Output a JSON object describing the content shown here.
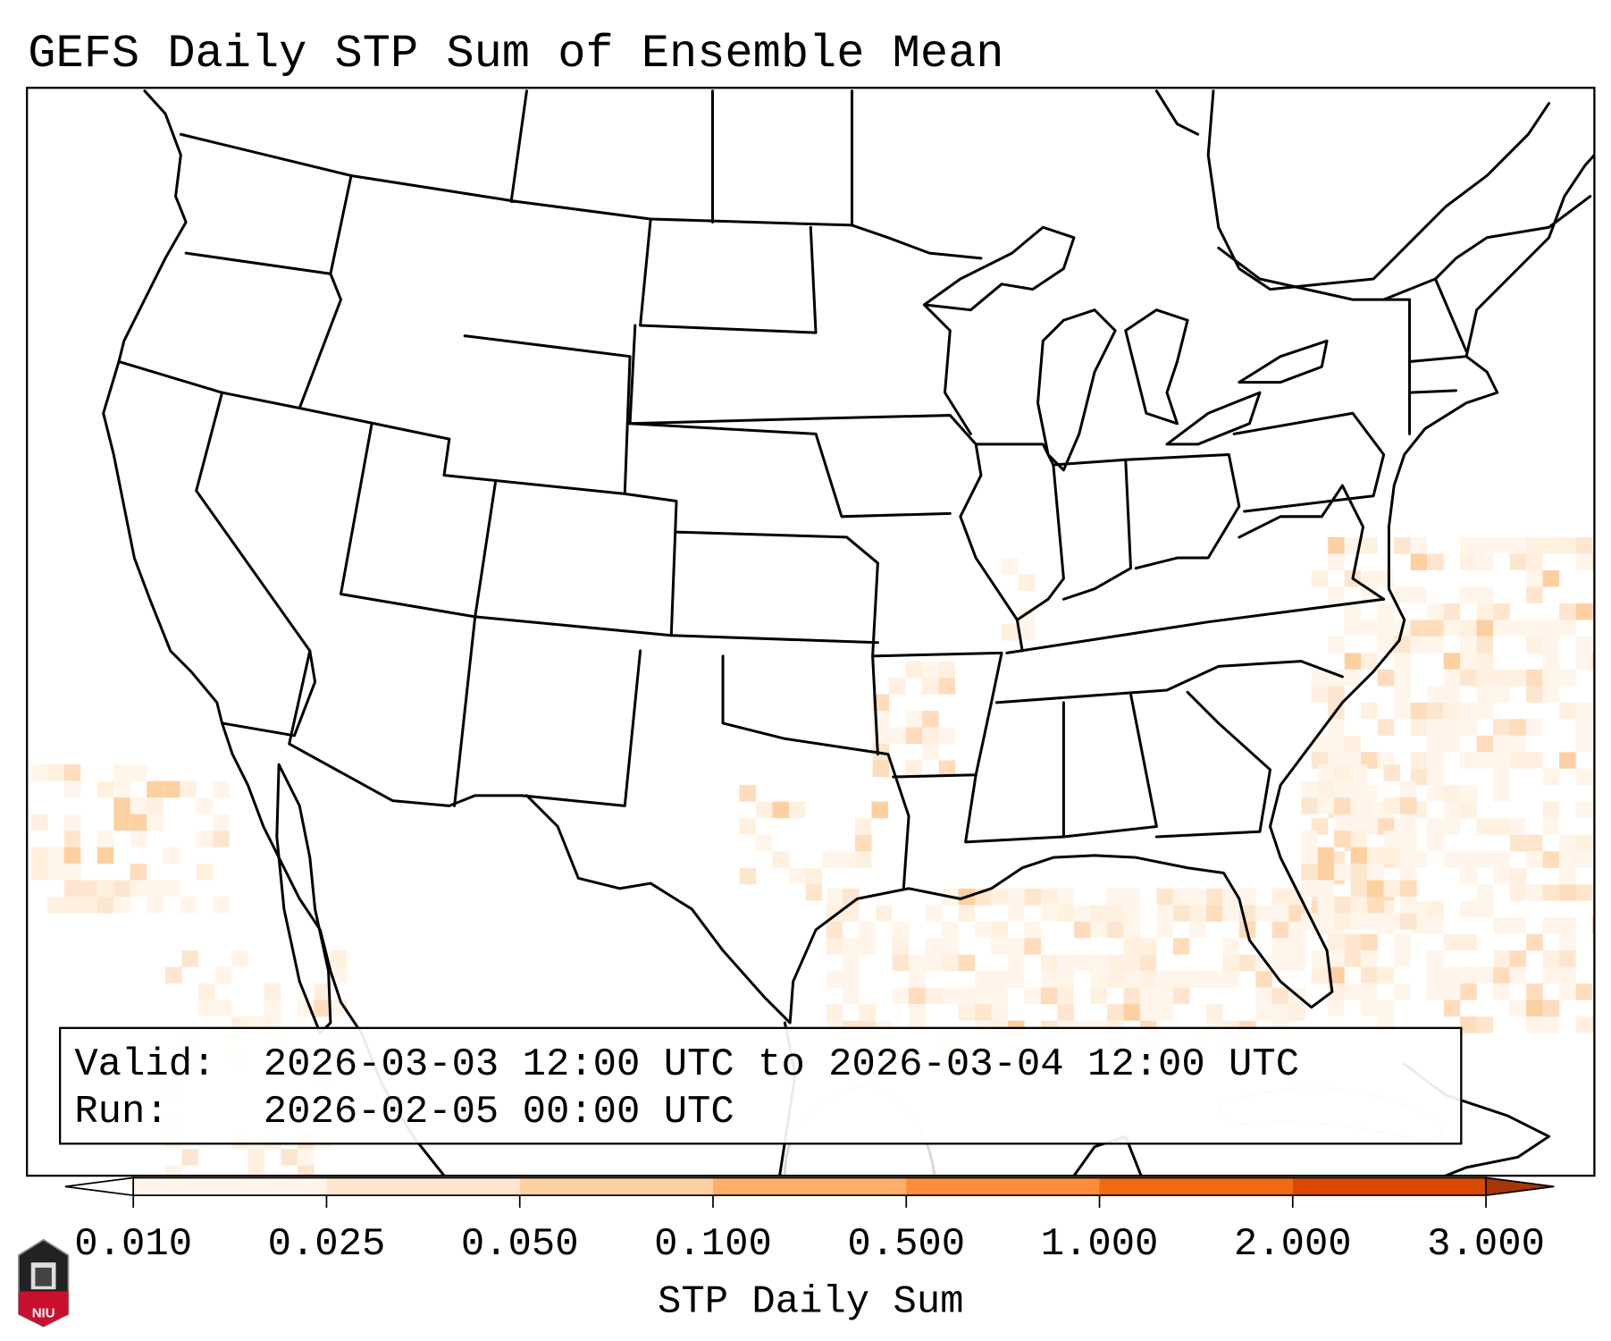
{
  "title": "GEFS Daily STP Sum of Ensemble Mean",
  "info_box": {
    "valid_label": "Valid:",
    "valid_value": "2026-03-03 12:00 UTC to 2026-03-04 12:00 UTC",
    "run_label": "Run:",
    "run_value": "2026-02-05 00:00 UTC"
  },
  "colorbar": {
    "label": "STP Daily Sum",
    "ticks": [
      "0.010",
      "0.025",
      "0.050",
      "0.100",
      "0.500",
      "1.000",
      "2.000",
      "3.000"
    ],
    "colors": [
      "#fff5eb",
      "#fee6ce",
      "#fdd0a2",
      "#fdae6b",
      "#fd8d3c",
      "#f16913",
      "#d94801"
    ],
    "under_color": "#ffffff",
    "over_color": "#a63603"
  },
  "logo": {
    "text": "NIU"
  }
}
